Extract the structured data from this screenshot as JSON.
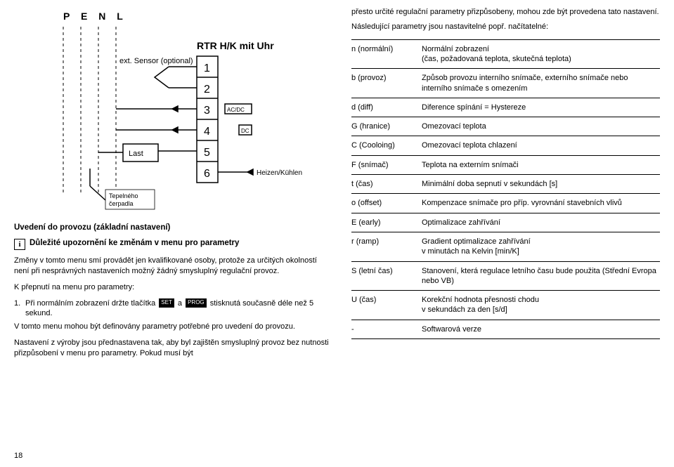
{
  "diagram": {
    "title_left": "P E N L",
    "title_right": "RTR H/K mit Uhr",
    "ext_sensor": "ext. Sensor (optional)",
    "last": "Last",
    "heizen": "Heizen/Kühlen",
    "acdc": "AC/DC",
    "dc": "DC",
    "pump_label": "Tepelného\nčerpadla",
    "terminals": [
      "1",
      "2",
      "3",
      "4",
      "5",
      "6"
    ]
  },
  "left": {
    "heading_setup": "Uvedení do provozu (základní nastavení)",
    "info_heading": "Důležité upozornění ke změnám v menu pro parametry",
    "body1": "Změny v tomto menu smí provádět jen kvalifikované osoby, protože za určitých okolností není při nesprávných nastaveních možný žádný smysluplný regulační provoz.",
    "switch_heading": "K přepnutí na menu pro parametry:",
    "step1_pre": "Při normálním zobrazení držte tlačítka ",
    "step1_mid": " a ",
    "step1_post": " stisknutá současně déle než 5 sekund.",
    "tag_set": "SET",
    "tag_prog": "PROG",
    "body2": "V tomto menu mohou být definovány parametry potřebné pro uvedení do provozu.",
    "body3": "Nastavení z výroby jsou přednastavena tak, aby byl zajištěn smysluplný provoz bez nutnosti přizpůsobení v menu pro parametry. Pokud musí být",
    "page": "18"
  },
  "right": {
    "intro1": "přesto určité regulační parametry přizpůsobeny, mohou zde být provedena tato nastavení.",
    "intro2": "Následující parametry jsou nastavitelné popř. načítatelné:",
    "rows": [
      {
        "k": "n (normální)",
        "v": "Normální zobrazení\n(čas, požadovaná teplota, skutečná teplota)"
      },
      {
        "k": "b (provoz)",
        "v": "Způsob provozu interního snímače, externího snímače nebo interního snímače s omezením"
      },
      {
        "k": "d (diff)",
        "v": "Diference spínání = Hystereze"
      },
      {
        "k": "G (hranice)",
        "v": "Omezovací teplota"
      },
      {
        "k": "C (Cooloing)",
        "v": "Omezovací teplota chlazení"
      },
      {
        "k": "F (snímač)",
        "v": "Teplota na externím snímači"
      },
      {
        "k": "t (čas)",
        "v": "Minimální doba sepnutí v sekundách [s]"
      },
      {
        "k": "o (offset)",
        "v": "Kompenzace snímače pro příp. vyrovnání stavebních vlivů"
      },
      {
        "k": "E (early)",
        "v": "Optimalizace zahřívání"
      },
      {
        "k": "r (ramp)",
        "v": "Gradient optimalizace zahřívání\nv minutách na Kelvin [min/K]"
      },
      {
        "k": "S (letní čas)",
        "v": "Stanovení, která regulace letního času bude použita (Střední Evropa nebo VB)"
      },
      {
        "k": "U (čas)",
        "v": "Korekční hodnota přesnosti chodu\nv sekundách za den [s/d]"
      },
      {
        "k": "-",
        "v": "Softwarová verze"
      }
    ]
  }
}
